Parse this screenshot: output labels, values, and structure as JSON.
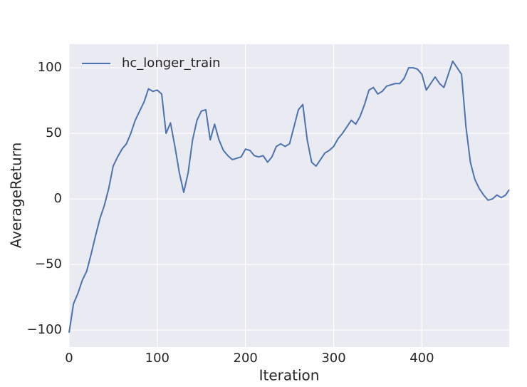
{
  "chart_data": {
    "type": "line",
    "xlabel": "Iteration",
    "ylabel": "AverageReturn",
    "x": [
      0,
      5,
      10,
      15,
      20,
      25,
      30,
      35,
      40,
      45,
      50,
      55,
      60,
      65,
      70,
      75,
      80,
      85,
      90,
      95,
      100,
      105,
      110,
      115,
      120,
      125,
      130,
      135,
      140,
      145,
      150,
      155,
      160,
      165,
      170,
      175,
      180,
      185,
      190,
      195,
      200,
      205,
      210,
      215,
      220,
      225,
      230,
      235,
      240,
      245,
      250,
      255,
      260,
      265,
      270,
      275,
      280,
      285,
      290,
      295,
      300,
      305,
      310,
      315,
      320,
      325,
      330,
      335,
      340,
      345,
      350,
      355,
      360,
      365,
      370,
      375,
      380,
      385,
      390,
      395,
      400,
      405,
      410,
      415,
      420,
      425,
      430,
      435,
      440,
      445,
      450,
      455,
      460,
      465,
      470,
      475,
      480,
      485,
      490,
      495,
      499
    ],
    "series": [
      {
        "name": "hc_longer_train",
        "color": "#4c72b0",
        "values": [
          -102,
          -80,
          -72,
          -62,
          -55,
          -42,
          -28,
          -15,
          -5,
          8,
          25,
          32,
          38,
          42,
          50,
          60,
          67,
          74,
          84,
          82,
          83,
          80,
          50,
          58,
          40,
          20,
          5,
          20,
          45,
          60,
          67,
          68,
          45,
          57,
          45,
          37,
          33,
          30,
          31,
          32,
          38,
          37,
          33,
          32,
          33,
          28,
          32,
          40,
          42,
          40,
          42,
          55,
          68,
          72,
          45,
          28,
          25,
          30,
          35,
          37,
          40,
          46,
          50,
          55,
          60,
          57,
          63,
          72,
          83,
          85,
          80,
          82,
          86,
          87,
          88,
          88,
          92,
          100,
          100,
          99,
          95,
          83,
          88,
          93,
          88,
          85,
          95,
          105,
          100,
          95,
          55,
          28,
          15,
          8,
          3,
          -1,
          0,
          3,
          1,
          3,
          7
        ]
      }
    ],
    "xlim": [
      0,
      499
    ],
    "ylim": [
      -113,
      118
    ],
    "xticks": [
      0,
      100,
      200,
      300,
      400
    ],
    "yticks": [
      {
        "value": -100,
        "label": "−100"
      },
      {
        "value": -50,
        "label": "−50"
      },
      0,
      50,
      100
    ],
    "grid": true,
    "legend": "upper left"
  }
}
